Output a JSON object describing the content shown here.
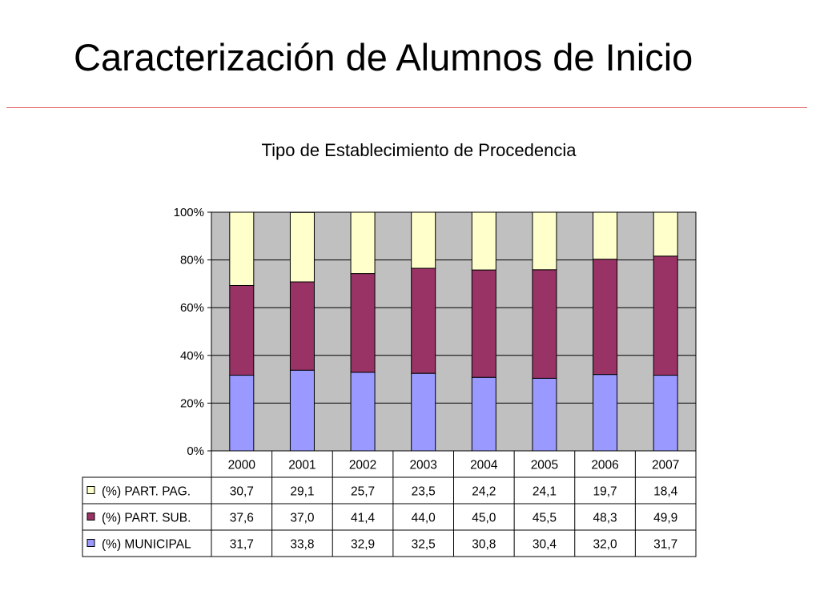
{
  "slide": {
    "title": "Caracterización de Alumnos de Inicio"
  },
  "chart_data": {
    "type": "bar",
    "stacked": true,
    "percent_stacked": true,
    "title": "Tipo de Establecimiento de Procedencia",
    "xlabel": "",
    "ylabel": "",
    "ylim": [
      0,
      100
    ],
    "y_ticks": [
      "0%",
      "20%",
      "40%",
      "60%",
      "80%",
      "100%"
    ],
    "grid": true,
    "legend": "data-table-left",
    "categories": [
      "2000",
      "2001",
      "2002",
      "2003",
      "2004",
      "2005",
      "2006",
      "2007"
    ],
    "series": [
      {
        "name": "(%) MUNICIPAL",
        "color": "#9999ff",
        "values": [
          31.7,
          33.8,
          32.9,
          32.5,
          30.8,
          30.4,
          32.0,
          31.7
        ],
        "labels": [
          "31,7",
          "33,8",
          "32,9",
          "32,5",
          "30,8",
          "30,4",
          "32,0",
          "31,7"
        ]
      },
      {
        "name": "(%) PART. SUB.",
        "color": "#993366",
        "values": [
          37.6,
          37.0,
          41.4,
          44.0,
          45.0,
          45.5,
          48.3,
          49.9
        ],
        "labels": [
          "37,6",
          "37,0",
          "41,4",
          "44,0",
          "45,0",
          "45,5",
          "48,3",
          "49,9"
        ]
      },
      {
        "name": "(%) PART. PAG.",
        "color": "#ffffcc",
        "values": [
          30.7,
          29.1,
          25.7,
          23.5,
          24.2,
          24.1,
          19.7,
          18.4
        ],
        "labels": [
          "30,7",
          "29,1",
          "25,7",
          "23,5",
          "24,2",
          "24,1",
          "19,7",
          "18,4"
        ]
      }
    ],
    "plot_background": "#c0c0c0"
  }
}
